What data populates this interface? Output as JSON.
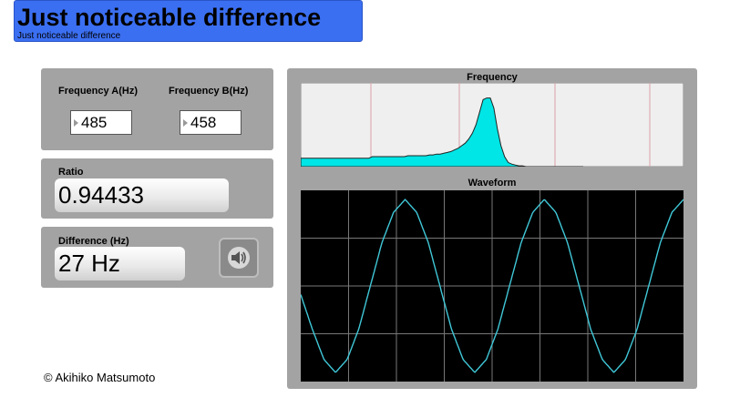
{
  "header": {
    "title": "Just noticeable difference",
    "subtitle": "Just noticeable difference"
  },
  "inputs": {
    "freq_a_label": "Frequency A(Hz)",
    "freq_a_value": "485",
    "freq_b_label": "Frequency B(Hz)",
    "freq_b_value": "458"
  },
  "ratio": {
    "label": "Ratio",
    "value": "0.94433"
  },
  "difference": {
    "label": "Difference (Hz)",
    "value": "27 Hz",
    "play_icon": "speaker-icon"
  },
  "footer": {
    "copyright": "© Akihiko Matsumoto"
  },
  "colors": {
    "panel": "#a3a3a3",
    "title_bg": "#3b6ff2",
    "spectrum_fill": "#00e5e5",
    "waveform_line": "#40c8d8",
    "waveform_bg": "#000000"
  },
  "chart_data": [
    {
      "type": "area",
      "title": "Frequency",
      "grid": true,
      "note_markers": "vertical pink gridlines",
      "series": [
        {
          "values": [
            0.1,
            0.1,
            0.1,
            0.1,
            0.1,
            0.1,
            0.1,
            0.1,
            0.1,
            0.1,
            0.1,
            0.1,
            0.1,
            0.1,
            0.1,
            0.1,
            0.1,
            0.1,
            0.1,
            0.1,
            0.12,
            0.12,
            0.12,
            0.12,
            0.12,
            0.12,
            0.12,
            0.12,
            0.12,
            0.12,
            0.13,
            0.13,
            0.13,
            0.13,
            0.13,
            0.13,
            0.14,
            0.14,
            0.15,
            0.15,
            0.16,
            0.17,
            0.18,
            0.2,
            0.22,
            0.25,
            0.28,
            0.33,
            0.4,
            0.5,
            0.65,
            0.8,
            0.82,
            0.82,
            0.7,
            0.45,
            0.25,
            0.12,
            0.05,
            0.03,
            0.02,
            0.01,
            0.01,
            0,
            0,
            0,
            0,
            0,
            0,
            0,
            0,
            0,
            0,
            0,
            0,
            0,
            0,
            0,
            0,
            0
          ]
        }
      ]
    },
    {
      "type": "line",
      "title": "Waveform",
      "grid": true,
      "ylim": [
        -1,
        1
      ],
      "series": [
        {
          "values": [
            -0.1,
            -0.5,
            -0.85,
            -1.0,
            -0.85,
            -0.5,
            0.0,
            0.5,
            0.85,
            1.0,
            0.85,
            0.5,
            0.0,
            -0.5,
            -0.85,
            -1.0,
            -0.85,
            -0.5,
            0.0,
            0.5,
            0.85,
            1.0,
            0.85,
            0.5,
            0.0,
            -0.5,
            -0.85,
            -1.0,
            -0.85,
            -0.5,
            0.0,
            0.5,
            0.85,
            1.0
          ]
        }
      ]
    }
  ]
}
